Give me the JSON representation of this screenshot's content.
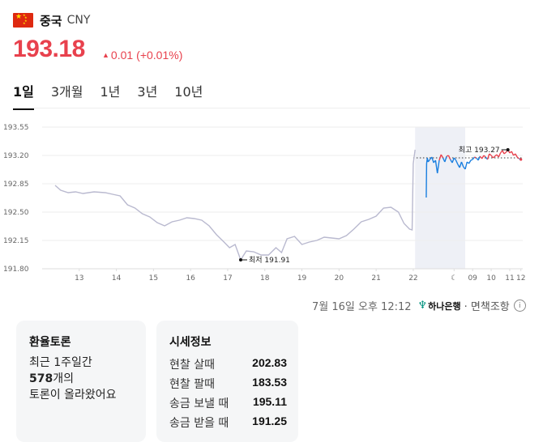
{
  "header": {
    "country": "중국",
    "currency": "CNY",
    "flag_icon": "china-flag-icon"
  },
  "quote": {
    "price": "193.18",
    "change": "0.01",
    "change_pct": "(+0.01%)",
    "direction_icon": "triangle-up-icon",
    "up_color": "#e8414d"
  },
  "tabs": [
    {
      "label": "1일",
      "active": true
    },
    {
      "label": "3개월",
      "active": false
    },
    {
      "label": "1년",
      "active": false
    },
    {
      "label": "3년",
      "active": false
    },
    {
      "label": "10년",
      "active": false
    }
  ],
  "chart_data": {
    "type": "line",
    "y_ticks": [
      "193.55",
      "193.20",
      "192.85",
      "192.50",
      "192.15",
      "191.80"
    ],
    "ylim": [
      191.8,
      193.55
    ],
    "x_ticks": [
      "13",
      "14",
      "15",
      "16",
      "17",
      "18",
      "19",
      "20",
      "21",
      "22",
      "☾",
      "09",
      "10",
      "11",
      "12"
    ],
    "grid": true,
    "reference_value": 193.17,
    "min_label": "최저 191.91",
    "max_label": "최고 193.27",
    "min_value": 191.91,
    "max_value": 193.27,
    "colors": {
      "history": "#b9b9cf",
      "up": "#e8414d",
      "down": "#1a7fe0",
      "night_band": "#eef0f6"
    },
    "history_series": {
      "name": "",
      "x": [
        12.35,
        12.5,
        12.7,
        12.9,
        13.1,
        13.4,
        13.7,
        13.9,
        14.1,
        14.3,
        14.5,
        14.7,
        14.9,
        15.1,
        15.3,
        15.5,
        15.7,
        15.9,
        16.1,
        16.3,
        16.5,
        16.7,
        16.9,
        17.05,
        17.2,
        17.35,
        17.5,
        17.7,
        17.9,
        18.1,
        18.3,
        18.45,
        18.6,
        18.8,
        19.0,
        19.2,
        19.4,
        19.6,
        19.8,
        20.0,
        20.2,
        20.4,
        20.6,
        20.8,
        21.0,
        21.2,
        21.4,
        21.6,
        21.75,
        21.9,
        21.97,
        22.0,
        22.05
      ],
      "y": [
        192.83,
        192.77,
        192.74,
        192.75,
        192.73,
        192.75,
        192.74,
        192.72,
        192.7,
        192.59,
        192.55,
        192.48,
        192.44,
        192.37,
        192.33,
        192.38,
        192.4,
        192.43,
        192.42,
        192.4,
        192.33,
        192.22,
        192.13,
        192.06,
        192.1,
        191.91,
        192.02,
        192.01,
        191.97,
        191.97,
        192.06,
        192.0,
        192.17,
        192.2,
        192.1,
        192.13,
        192.15,
        192.19,
        192.18,
        192.17,
        192.21,
        192.29,
        192.38,
        192.41,
        192.45,
        192.55,
        192.56,
        192.5,
        192.36,
        192.29,
        192.28,
        193.1,
        193.27
      ]
    },
    "intraday_series": {
      "name": "",
      "x": [
        22.35,
        22.36,
        22.38,
        22.4,
        22.45,
        22.5,
        22.55,
        22.6,
        22.65,
        22.7,
        22.75,
        22.8,
        22.85,
        22.9,
        22.95,
        23.0,
        23.05,
        23.1,
        23.15,
        23.2,
        23.25,
        23.3,
        23.35,
        23.4,
        23.45,
        23.5,
        23.55,
        23.6,
        23.65,
        23.7,
        23.75,
        23.8,
        23.85,
        23.9,
        23.95,
        24.0,
        24.05,
        24.1,
        24.15,
        24.2,
        24.25,
        24.3,
        24.35,
        24.4,
        24.45,
        24.5,
        24.55,
        24.6,
        24.65,
        24.7,
        24.75,
        24.8,
        24.85,
        24.9
      ],
      "y": [
        192.68,
        193.1,
        193.17,
        193.12,
        193.15,
        193.18,
        193.11,
        193.14,
        192.98,
        193.14,
        193.21,
        193.17,
        193.12,
        193.19,
        193.2,
        193.15,
        193.11,
        193.17,
        193.14,
        193.09,
        193.05,
        193.12,
        193.06,
        193.03,
        193.12,
        193.1,
        193.14,
        193.15,
        193.18,
        193.17,
        193.14,
        193.19,
        193.16,
        193.2,
        193.18,
        193.15,
        193.22,
        193.2,
        193.17,
        193.19,
        193.21,
        193.18,
        193.23,
        193.26,
        193.22,
        193.24,
        193.27,
        193.23,
        193.25,
        193.2,
        193.22,
        193.18,
        193.16,
        193.15
      ]
    }
  },
  "timestamp": {
    "text": "7월 16일 오후 12:12",
    "bank": "하나은행",
    "disclaimer": "· 면책조항",
    "info_icon": "info-icon"
  },
  "discussion": {
    "title": "환율토론",
    "line1": "최근 1주일간",
    "count": "578",
    "line2_suffix": "개의",
    "line3": "토론이 올라왔어요"
  },
  "rates": {
    "title": "시세정보",
    "rows": [
      {
        "label": "현찰 살때",
        "value": "202.83"
      },
      {
        "label": "현찰 팔때",
        "value": "183.53"
      },
      {
        "label": "송금 보낼 때",
        "value": "195.11"
      },
      {
        "label": "송금 받을 때",
        "value": "191.25"
      }
    ]
  }
}
